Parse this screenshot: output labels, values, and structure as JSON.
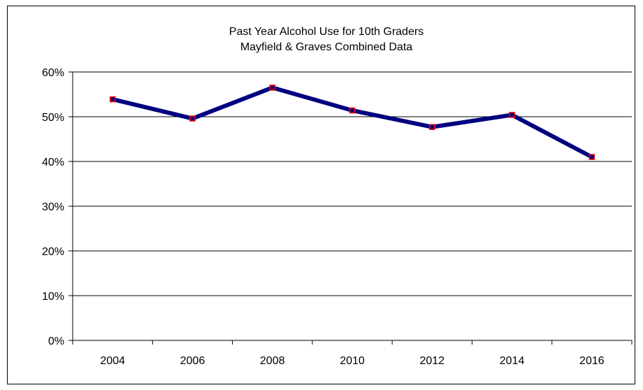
{
  "chart_data": {
    "type": "line",
    "title": "Past Year Alcohol Use for 10th Graders",
    "subtitle": "Mayfield & Graves Combined Data",
    "xlabel": "",
    "ylabel": "",
    "categories": [
      "2004",
      "2006",
      "2008",
      "2010",
      "2012",
      "2014",
      "2016"
    ],
    "series": [
      {
        "values": [
          53.9,
          49.6,
          56.5,
          51.4,
          47.7,
          50.4,
          41.0
        ],
        "line_color": "#000080",
        "marker_fill": "#000080",
        "marker_edge": "#ff0000"
      }
    ],
    "ylim": [
      0,
      60
    ],
    "yticks": [
      0,
      10,
      20,
      30,
      40,
      50,
      60
    ],
    "ytick_labels": [
      "0%",
      "10%",
      "20%",
      "30%",
      "40%",
      "50%",
      "60%"
    ],
    "grid": true,
    "legend": "none"
  }
}
